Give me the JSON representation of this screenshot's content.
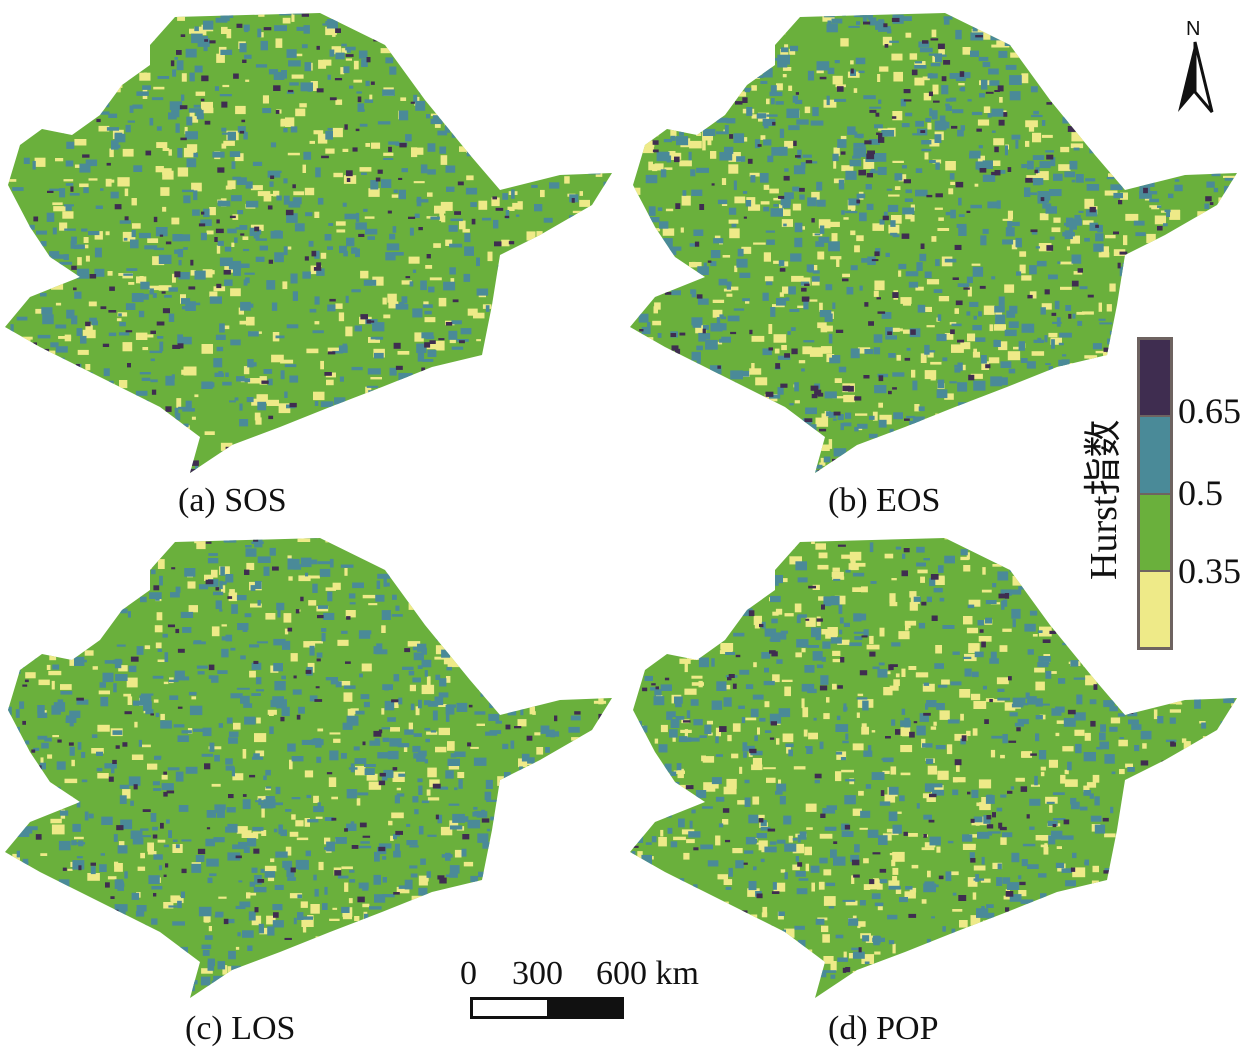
{
  "panels": [
    {
      "id": "a",
      "caption": "(a) SOS",
      "mix": {
        "yellow": 0.16,
        "green": 0.5,
        "teal": 0.27,
        "dark": 0.07
      }
    },
    {
      "id": "b",
      "caption": "(b) EOS",
      "mix": {
        "yellow": 0.2,
        "green": 0.4,
        "teal": 0.32,
        "dark": 0.08
      }
    },
    {
      "id": "c",
      "caption": "(c) LOS",
      "mix": {
        "yellow": 0.14,
        "green": 0.48,
        "teal": 0.32,
        "dark": 0.06
      }
    },
    {
      "id": "d",
      "caption": "(d) POP",
      "mix": {
        "yellow": 0.22,
        "green": 0.45,
        "teal": 0.26,
        "dark": 0.07
      }
    }
  ],
  "legend": {
    "title": "Hurst指数",
    "classes": [
      {
        "color": "#3f2d50"
      },
      {
        "color": "#4a8a98"
      },
      {
        "color": "#6ab03c"
      },
      {
        "color": "#eeea88"
      }
    ],
    "ticks": [
      "0.65",
      "0.5",
      "0.35"
    ]
  },
  "north_arrow": {
    "label": "N"
  },
  "scale_bar": {
    "labels": [
      "0",
      "300",
      "600 km"
    ]
  }
}
